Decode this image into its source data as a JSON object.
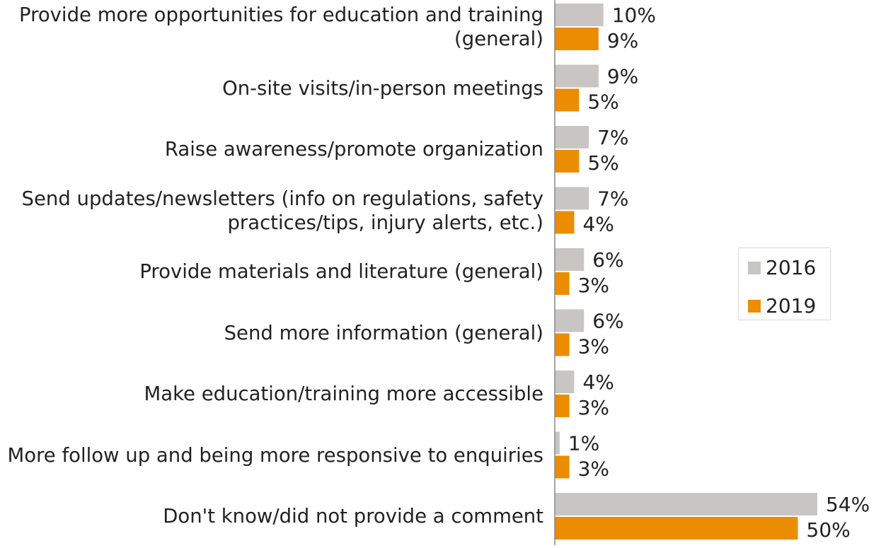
{
  "chart_data": {
    "type": "bar",
    "orientation": "horizontal",
    "categories": [
      "Provide more opportunities for education and training (general)",
      "On-site visits/in-person meetings",
      "Raise awareness/promote organization",
      "Send updates/newsletters (info on regulations, safety practices/tips, injury alerts, etc.)",
      "Provide materials and literature (general)",
      "Send more information (general)",
      "Make education/training more accessible",
      "More follow up and being more responsive to enquiries",
      "Don't know/did not provide a comment"
    ],
    "series": [
      {
        "name": "2016",
        "color": "#c9c5c2",
        "values": [
          10,
          9,
          7,
          7,
          6,
          6,
          4,
          1,
          54
        ],
        "value_labels": [
          "10%",
          "9%",
          "7%",
          "7%",
          "6%",
          "6%",
          "4%",
          "1%",
          "54%"
        ]
      },
      {
        "name": "2019",
        "color": "#ec8c00",
        "values": [
          9,
          5,
          5,
          4,
          3,
          3,
          3,
          3,
          50
        ],
        "value_labels": [
          "9%",
          "5%",
          "5%",
          "4%",
          "3%",
          "3%",
          "3%",
          "3%",
          "50%"
        ]
      }
    ],
    "legend": "right"
  }
}
